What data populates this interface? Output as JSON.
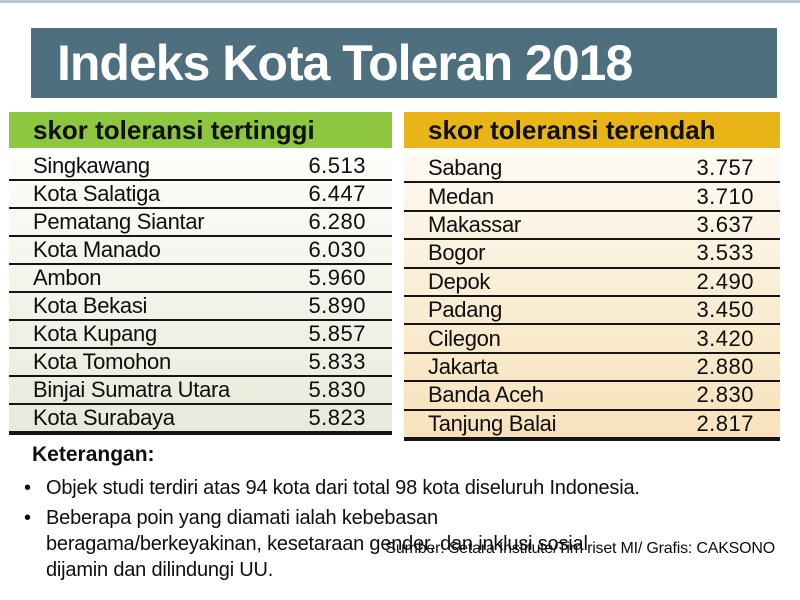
{
  "page": {
    "title": "Indeks Kota Toleran 2018"
  },
  "tables": {
    "highest": {
      "header": "skor toleransi tertinggi",
      "rows": [
        {
          "city": "Singkawang",
          "score": "6.513"
        },
        {
          "city": "Kota Salatiga",
          "score": "6.447"
        },
        {
          "city": "Pematang Siantar",
          "score": "6.280"
        },
        {
          "city": "Kota Manado",
          "score": "6.030"
        },
        {
          "city": "Ambon",
          "score": "5.960"
        },
        {
          "city": "Kota Bekasi",
          "score": "5.890"
        },
        {
          "city": "Kota Kupang",
          "score": "5.857"
        },
        {
          "city": "Kota Tomohon",
          "score": "5.833"
        },
        {
          "city": "Binjai Sumatra Utara",
          "score": "5.830"
        },
        {
          "city": "Kota Surabaya",
          "score": "5.823"
        }
      ]
    },
    "lowest": {
      "header": "skor toleransi terendah",
      "rows": [
        {
          "city": "Sabang",
          "score": "3.757"
        },
        {
          "city": "Medan",
          "score": "3.710"
        },
        {
          "city": "Makassar",
          "score": "3.637"
        },
        {
          "city": "Bogor",
          "score": "3.533"
        },
        {
          "city": "Depok",
          "score": "2.490"
        },
        {
          "city": "Padang",
          "score": "3.450"
        },
        {
          "city": "Cilegon",
          "score": "3.420"
        },
        {
          "city": "Jakarta",
          "score": "2.880"
        },
        {
          "city": "Banda Aceh",
          "score": "2.830"
        },
        {
          "city": "Tanjung Balai",
          "score": "2.817"
        }
      ]
    }
  },
  "notes": {
    "heading": "Keterangan:",
    "bullets": [
      "Objek studi terdiri atas 94 kota dari total 98 kota diseluruh Indonesia.",
      "Beberapa poin yang diamati ialah kebebasan beragama/berkeyakinan, kesetaraan gender, dan inklusi sosial dijamin dan dilindungi UU."
    ],
    "source": "Sumber: Setara Institute/Tim riset MI/ Grafis: CAKSONO"
  },
  "colors": {
    "top_strip": "#b9c8d3",
    "title_bg": "#4e6f7e",
    "highest_header_bg": "#8dc63f",
    "lowest_header_bg": "#e9b516",
    "highest_row_tint": "#e6eada",
    "lowest_row_tint": "#f7e2bb"
  },
  "chart_data": [
    {
      "type": "table",
      "title": "skor toleransi tertinggi",
      "categories": [
        "Singkawang",
        "Kota Salatiga",
        "Pematang Siantar",
        "Kota Manado",
        "Ambon",
        "Kota Bekasi",
        "Kota Kupang",
        "Kota Tomohon",
        "Binjai Sumatra Utara",
        "Kota Surabaya"
      ],
      "values": [
        6.513,
        6.447,
        6.28,
        6.03,
        5.96,
        5.89,
        5.857,
        5.833,
        5.83,
        5.823
      ],
      "xlabel": "kota",
      "ylabel": "skor toleransi"
    },
    {
      "type": "table",
      "title": "skor toleransi terendah",
      "categories": [
        "Sabang",
        "Medan",
        "Makassar",
        "Bogor",
        "Depok",
        "Padang",
        "Cilegon",
        "Jakarta",
        "Banda Aceh",
        "Tanjung Balai"
      ],
      "values": [
        3.757,
        3.71,
        3.637,
        3.533,
        2.49,
        3.45,
        3.42,
        2.88,
        2.83,
        2.817
      ],
      "xlabel": "kota",
      "ylabel": "skor toleransi"
    }
  ]
}
